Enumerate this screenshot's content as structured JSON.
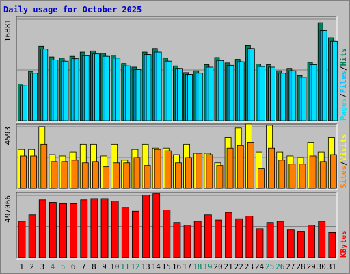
{
  "title": "Daily usage for October 2025",
  "days": [
    1,
    2,
    3,
    4,
    5,
    6,
    7,
    8,
    9,
    10,
    11,
    12,
    13,
    14,
    15,
    16,
    17,
    18,
    19,
    20,
    21,
    22,
    23,
    24,
    25,
    26,
    27,
    28,
    29,
    30,
    31
  ],
  "weekend_days": [
    4,
    5,
    11,
    12,
    18,
    19,
    25,
    26
  ],
  "colors": {
    "background": "#c0c0c0",
    "hits": "#00805c",
    "files": "#00c0ff",
    "pages": "#00e0ff",
    "visits": "#ffff00",
    "sites": "#ff8000",
    "kbytes": "#ff0000",
    "weekday_label": "#000000",
    "weekend_label": "#00805c"
  },
  "chart_data": [
    {
      "type": "bar",
      "name": "hits-files-pages",
      "ylim": [
        0,
        16881
      ],
      "ytick_label": "16881",
      "legend": [
        "Pages",
        "/",
        "Files",
        "/",
        "Hits"
      ],
      "series": [
        {
          "name": "Hits",
          "values": [
            6100,
            8200,
            12400,
            10600,
            10400,
            10700,
            11400,
            11600,
            11200,
            10900,
            9500,
            8900,
            11400,
            12000,
            10400,
            9100,
            8000,
            8300,
            9300,
            10500,
            9600,
            10200,
            12500,
            9400,
            9300,
            8300,
            8700,
            7500,
            9700,
            16300,
            13800
          ]
        },
        {
          "name": "Files",
          "values": [
            5800,
            7900,
            11900,
            10100,
            9900,
            10300,
            10800,
            11100,
            10700,
            10400,
            9100,
            8500,
            11000,
            11400,
            9900,
            8700,
            7700,
            7900,
            8900,
            10000,
            9200,
            9800,
            12000,
            9000,
            8900,
            7900,
            8300,
            7200,
            9300,
            15000,
            13200
          ]
        },
        {
          "name": "Pages",
          "values": [
            5800,
            7900,
            11900,
            10100,
            9900,
            10300,
            10800,
            11100,
            10700,
            10400,
            9100,
            8500,
            11000,
            11400,
            9900,
            8700,
            7700,
            7900,
            8900,
            10000,
            9200,
            9800,
            12000,
            9000,
            8900,
            7900,
            8300,
            7200,
            9300,
            15000,
            13200
          ]
        }
      ]
    },
    {
      "type": "bar",
      "name": "visits-sites",
      "ylim": [
        0,
        4593
      ],
      "ytick_label": "4593",
      "legend": [
        "Sites",
        "/",
        "Visits"
      ],
      "series": [
        {
          "name": "Visits",
          "values": [
            2900,
            2900,
            4600,
            2500,
            2400,
            2700,
            3300,
            3300,
            2400,
            3300,
            2100,
            2900,
            3300,
            3000,
            3000,
            2500,
            3300,
            2600,
            2600,
            1900,
            3800,
            4500,
            4800,
            2700,
            4700,
            2700,
            2400,
            2300,
            3400,
            2700,
            3800
          ]
        },
        {
          "name": "Sites",
          "values": [
            2400,
            2400,
            3300,
            2000,
            2000,
            2100,
            1900,
            2000,
            1600,
            1900,
            1900,
            2300,
            1700,
            2900,
            2800,
            1900,
            2300,
            2600,
            2500,
            1700,
            3000,
            3200,
            3400,
            1500,
            3000,
            2100,
            1800,
            1800,
            2400,
            2000,
            2500
          ]
        }
      ]
    },
    {
      "type": "bar",
      "name": "kbytes",
      "ylim": [
        0,
        497066
      ],
      "ytick_label": "497066",
      "legend": [
        "KBytes"
      ],
      "series": [
        {
          "name": "KBytes",
          "values": [
            290000,
            340000,
            460000,
            440000,
            430000,
            430000,
            460000,
            470000,
            470000,
            450000,
            400000,
            370000,
            500000,
            510000,
            380000,
            280000,
            260000,
            290000,
            340000,
            300000,
            360000,
            310000,
            330000,
            230000,
            280000,
            290000,
            220000,
            210000,
            260000,
            290000,
            200000
          ]
        }
      ]
    }
  ]
}
